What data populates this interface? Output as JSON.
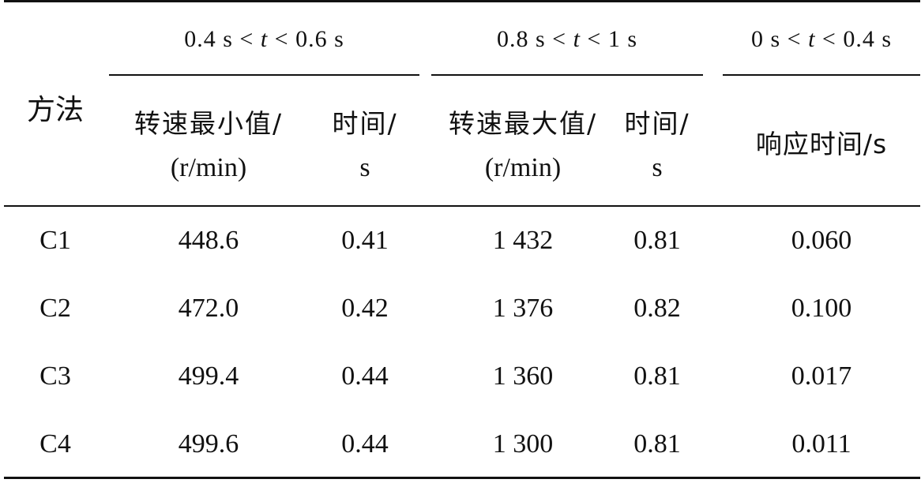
{
  "table": {
    "group_headers": [
      {
        "pre": "0.4 s < ",
        "var": "t",
        "post": " < 0.6 s"
      },
      {
        "pre": "0.8 s < ",
        "var": "t",
        "post": " < 1 s"
      },
      {
        "pre": "0 s < ",
        "var": "t",
        "post": " < 0.4 s"
      }
    ],
    "method_header": "方法",
    "sub_headers": [
      {
        "line1": "转速最小值/",
        "line2": "(r/min)"
      },
      {
        "line1": "时间/",
        "line2": "s"
      },
      {
        "line1": "转速最大值/",
        "line2": "(r/min)"
      },
      {
        "line1": "时间/",
        "line2": "s"
      }
    ],
    "response_header": "响应时间/s",
    "rows": [
      [
        "C1",
        "448.6",
        "0.41",
        "1 432",
        "0.81",
        "0.060"
      ],
      [
        "C2",
        "472.0",
        "0.42",
        "1 376",
        "0.82",
        "0.100"
      ],
      [
        "C3",
        "499.4",
        "0.44",
        "1 360",
        "0.81",
        "0.017"
      ],
      [
        "C4",
        "499.6",
        "0.44",
        "1 300",
        "0.81",
        "0.011"
      ]
    ]
  }
}
